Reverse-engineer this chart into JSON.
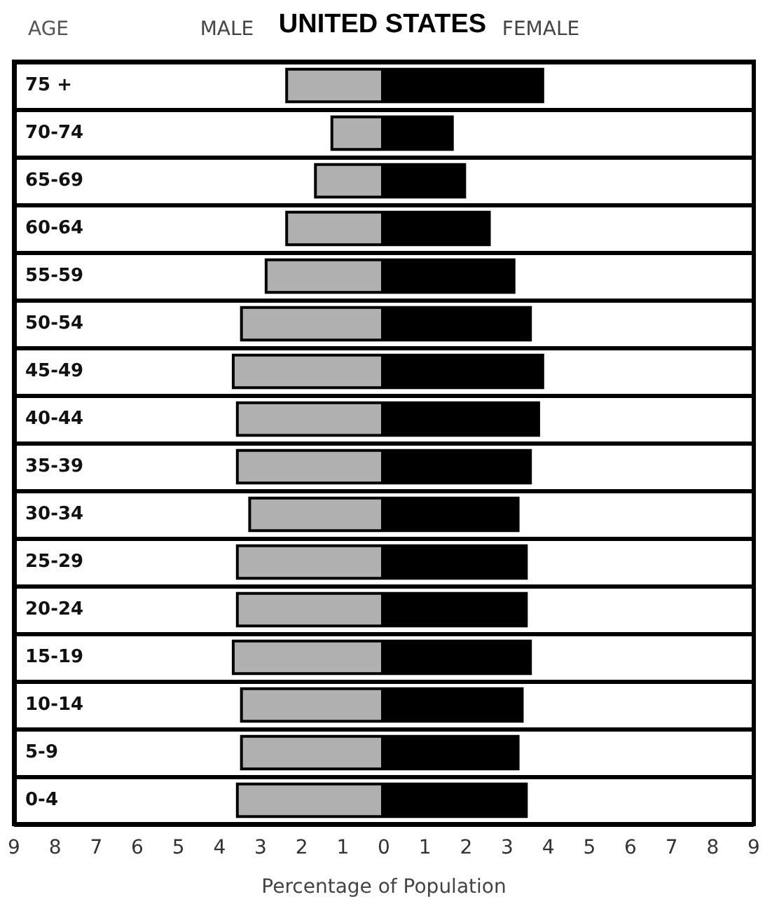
{
  "chart_data": {
    "type": "bar",
    "orientation": "horizontal",
    "title": "UNITED STATES",
    "ylabel": "AGE",
    "xlabel": "Percentage of Population",
    "categories": [
      "75 +",
      "70-74",
      "65-69",
      "60-64",
      "55-59",
      "50-54",
      "45-49",
      "40-44",
      "35-39",
      "30-34",
      "25-29",
      "20-24",
      "15-19",
      "10-14",
      "5-9",
      "0-4"
    ],
    "series": [
      {
        "name": "MALE",
        "color": "#b0b0b0",
        "values": [
          -2.4,
          -1.3,
          -1.7,
          -2.4,
          -2.9,
          -3.5,
          -3.7,
          -3.6,
          -3.6,
          -3.3,
          -3.6,
          -3.6,
          -3.7,
          -3.5,
          -3.5,
          -3.6
        ]
      },
      {
        "name": "FEMALE",
        "color": "#000000",
        "values": [
          3.9,
          1.7,
          2.0,
          2.6,
          3.2,
          3.6,
          3.9,
          3.8,
          3.6,
          3.3,
          3.5,
          3.5,
          3.6,
          3.4,
          3.3,
          3.5
        ]
      }
    ],
    "xlim": [
      -9,
      9
    ],
    "xticks": [
      {
        "value": -9,
        "label": "9"
      },
      {
        "value": -8,
        "label": "8"
      },
      {
        "value": -7,
        "label": "7"
      },
      {
        "value": -6,
        "label": "6"
      },
      {
        "value": -5,
        "label": "5"
      },
      {
        "value": -4,
        "label": "4"
      },
      {
        "value": -3,
        "label": "3"
      },
      {
        "value": -2,
        "label": "2"
      },
      {
        "value": -1,
        "label": "1"
      },
      0,
      1,
      2,
      3,
      4,
      5,
      6,
      7,
      8,
      9
    ],
    "grid": "y",
    "stacked": true
  }
}
